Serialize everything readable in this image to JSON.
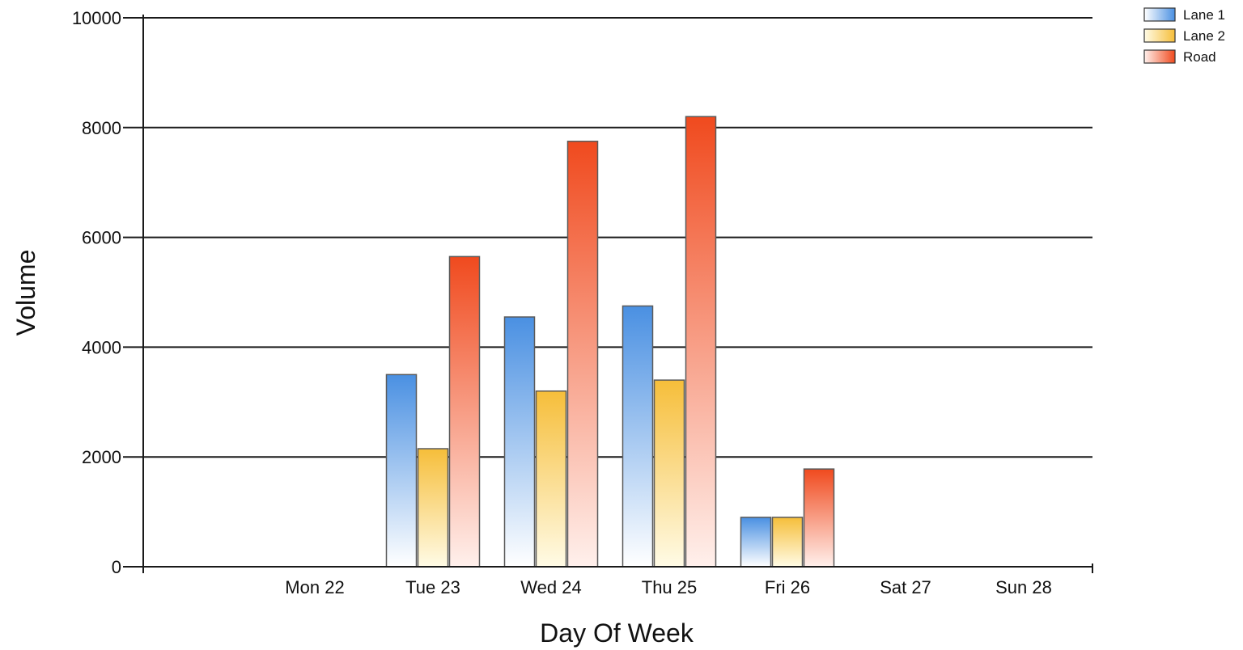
{
  "chart_data": {
    "type": "bar",
    "title": "",
    "xlabel": "Day Of Week",
    "ylabel": "Volume",
    "categories": [
      "Mon 22",
      "Tue 23",
      "Wed 24",
      "Thu 25",
      "Fri 26",
      "Sat 27",
      "Sun 28"
    ],
    "series": [
      {
        "name": "Lane 1",
        "values": [
          null,
          3500,
          4550,
          4750,
          900,
          null,
          null
        ],
        "color_top": "#4a90e2",
        "color_bottom": "#ffffff"
      },
      {
        "name": "Lane 2",
        "values": [
          null,
          2150,
          3200,
          3400,
          900,
          null,
          null
        ],
        "color_top": "#f6be3a",
        "color_bottom": "#fffbe6"
      },
      {
        "name": "Road",
        "values": [
          null,
          5650,
          7750,
          8200,
          1780,
          null,
          null
        ],
        "color_top": "#f04a1e",
        "color_bottom": "#fff0ec"
      }
    ],
    "ylim": [
      0,
      10000
    ],
    "yticks": [
      0,
      2000,
      4000,
      6000,
      8000,
      10000
    ],
    "ytick_labels": [
      "0",
      "2000",
      "4000",
      "6000",
      "8000",
      "10000"
    ],
    "grid": true,
    "legend_position": "top-right"
  }
}
